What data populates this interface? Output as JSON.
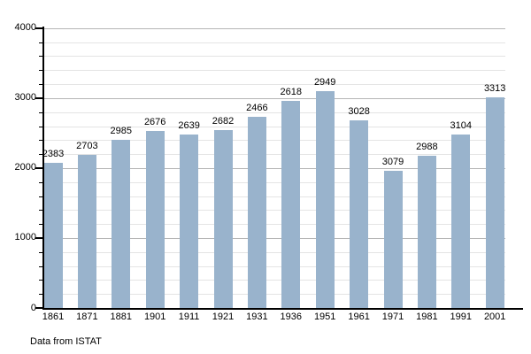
{
  "chart_data": {
    "type": "bar",
    "title": "",
    "xlabel": "",
    "ylabel": "",
    "categories": [
      "1861",
      "1871",
      "1881",
      "1901",
      "1911",
      "1921",
      "1931",
      "1936",
      "1951",
      "1961",
      "1971",
      "1981",
      "1991",
      "2001"
    ],
    "values": [
      2383,
      2703,
      2985,
      2676,
      2639,
      2682,
      2466,
      2618,
      2949,
      3028,
      3079,
      2988,
      3104,
      3313
    ],
    "rendered_bar_tops": [
      2080,
      2195,
      2400,
      2530,
      2480,
      2540,
      2735,
      2960,
      3100,
      2680,
      1960,
      2175,
      2480,
      3010
    ],
    "note_on_rendering": "In the source image the printed data labels do not match the drawn bar heights; rendered_bar_tops reproduces the drawn heights while values reproduces the printed labels.",
    "ylim": [
      0,
      4000
    ],
    "y_major_step": 1000,
    "y_minor_step": 200,
    "y_tick_labels": [
      "0",
      "1000",
      "2000",
      "3000",
      "4000"
    ],
    "grid": true,
    "legend": false
  },
  "footer": {
    "source_note": "Data from ISTAT"
  },
  "colors": {
    "bar": "#99b3cc",
    "grid_major": "#b5b5b5",
    "grid_minor": "#e4e4e4",
    "axis": "#000000",
    "text": "#000000",
    "background": "#ffffff"
  }
}
